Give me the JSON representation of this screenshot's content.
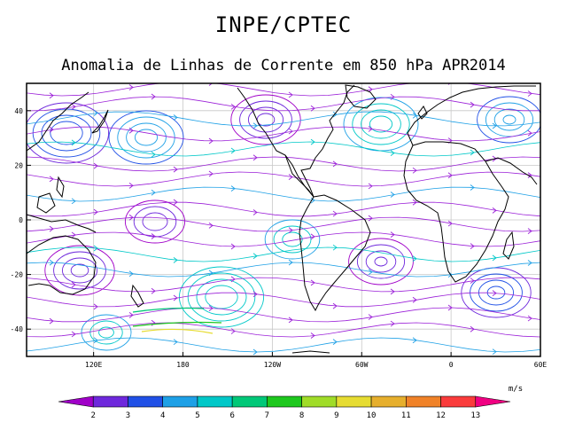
{
  "header": {
    "title": "INPE/CPTEC",
    "subtitle": "Anomalia de Linhas de Corrente em 850 hPa APR2014"
  },
  "map": {
    "lat_range": [
      -50,
      50
    ],
    "lon_range": [
      75,
      420
    ],
    "lat_ticks": [
      {
        "value": 40,
        "label": "40"
      },
      {
        "value": 20,
        "label": "20"
      },
      {
        "value": 0,
        "label": "0"
      },
      {
        "value": -20,
        "label": "-20"
      },
      {
        "value": -40,
        "label": "-40"
      }
    ],
    "lon_ticks": [
      {
        "value": 120,
        "label": "120E"
      },
      {
        "value": 180,
        "label": "180"
      },
      {
        "value": 240,
        "label": "120W"
      },
      {
        "value": 300,
        "label": "60W"
      },
      {
        "value": 360,
        "label": "0"
      },
      {
        "value": 420,
        "label": "60E"
      }
    ],
    "grid": true,
    "streamline_color": "#9b20d8"
  },
  "colorbar": {
    "unit": "m/s",
    "labels": [
      "2",
      "3",
      "4",
      "5",
      "6",
      "7",
      "8",
      "9",
      "10",
      "11",
      "12",
      "13"
    ],
    "colors": [
      "#a000c8",
      "#6e28dc",
      "#2050e6",
      "#1ea0e6",
      "#00c8c8",
      "#00c878",
      "#1ec81e",
      "#a0dc28",
      "#e6dc32",
      "#e6af2d",
      "#f08228",
      "#fa3c3c",
      "#f00082"
    ]
  }
}
